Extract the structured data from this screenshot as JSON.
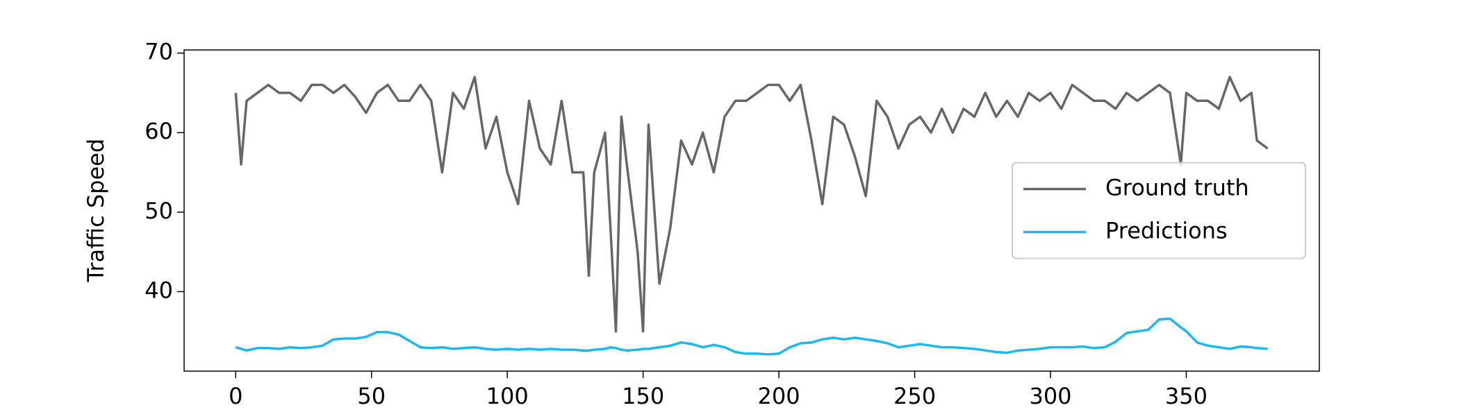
{
  "chart_data": {
    "type": "line",
    "y_label": "Traffic Speed",
    "x": [
      0,
      2,
      4,
      8,
      12,
      16,
      20,
      24,
      28,
      32,
      36,
      40,
      44,
      48,
      52,
      56,
      60,
      64,
      68,
      72,
      76,
      80,
      84,
      88,
      92,
      96,
      100,
      104,
      108,
      112,
      116,
      120,
      124,
      128,
      130,
      132,
      136,
      138,
      140,
      142,
      144,
      148,
      150,
      152,
      156,
      160,
      164,
      168,
      172,
      176,
      180,
      184,
      188,
      192,
      196,
      200,
      204,
      208,
      212,
      216,
      220,
      224,
      228,
      232,
      236,
      240,
      244,
      248,
      252,
      256,
      260,
      264,
      268,
      272,
      276,
      280,
      284,
      288,
      292,
      296,
      300,
      304,
      308,
      312,
      316,
      320,
      324,
      328,
      332,
      336,
      340,
      344,
      348,
      350,
      354,
      358,
      362,
      366,
      370,
      374,
      376,
      380
    ],
    "series": [
      {
        "name": "Ground truth",
        "color": "#666666",
        "values": [
          65,
          56,
          64,
          65,
          66,
          65,
          65,
          64,
          66,
          66,
          65,
          66,
          64.5,
          62.5,
          65,
          66,
          64,
          64,
          66,
          64,
          55,
          65,
          63,
          67,
          58,
          62,
          55,
          51,
          64,
          58,
          56,
          64,
          55,
          55,
          42,
          55,
          60,
          48,
          35,
          62,
          56,
          45,
          35,
          61,
          41,
          48,
          59,
          56,
          60,
          55,
          62,
          64,
          64,
          65,
          66,
          66,
          64,
          66,
          59,
          51,
          62,
          61,
          57,
          52,
          64,
          62,
          58,
          61,
          62,
          60,
          63,
          60,
          63,
          62,
          65,
          62,
          64,
          62,
          65,
          64,
          65,
          63,
          66,
          65,
          64,
          64,
          63,
          65,
          64,
          65,
          66,
          65,
          56,
          65,
          64,
          64,
          63,
          67,
          64,
          65,
          59,
          58
        ]
      },
      {
        "name": "Predictions",
        "color": "#1bb8ef",
        "values": [
          33,
          32.8,
          32.6,
          32.9,
          32.9,
          32.8,
          33,
          32.9,
          33,
          33.2,
          34,
          34.1,
          34.1,
          34.3,
          34.9,
          34.9,
          34.6,
          33.8,
          33,
          32.9,
          33,
          32.8,
          32.9,
          33,
          32.8,
          32.7,
          32.8,
          32.7,
          32.8,
          32.7,
          32.8,
          32.7,
          32.7,
          32.6,
          32.6,
          32.7,
          32.8,
          33,
          32.9,
          32.7,
          32.6,
          32.7,
          32.8,
          32.8,
          33,
          33.2,
          33.6,
          33.4,
          33,
          33.3,
          33,
          32.4,
          32.2,
          32.2,
          32.1,
          32.2,
          33,
          33.5,
          33.6,
          34,
          34.2,
          34,
          34.2,
          34,
          33.8,
          33.5,
          33,
          33.2,
          33.4,
          33.2,
          33,
          33,
          32.9,
          32.8,
          32.6,
          32.4,
          32.3,
          32.6,
          32.7,
          32.8,
          33,
          33,
          33,
          33.1,
          32.9,
          33,
          33.7,
          34.8,
          35,
          35.2,
          36.5,
          36.6,
          35.5,
          35,
          33.6,
          33.2,
          33,
          32.8,
          33.1,
          33,
          32.9,
          32.8
        ]
      }
    ],
    "xlim": [
      -19,
      399
    ],
    "ylim": [
      30.0,
      70.4
    ],
    "xticks": [
      0,
      50,
      100,
      150,
      200,
      250,
      300,
      350
    ],
    "yticks": [
      40,
      50,
      60,
      70
    ],
    "grid": false,
    "legend": "center right"
  }
}
